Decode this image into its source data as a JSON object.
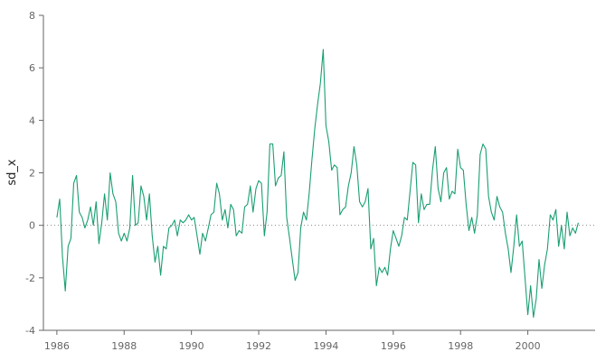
{
  "chart_data": {
    "type": "line",
    "title": "",
    "xlabel": "",
    "ylabel": "sd_x",
    "xlim": [
      1985.6,
      2002.0
    ],
    "ylim": [
      -4,
      8
    ],
    "x_ticks": [
      1986,
      1988,
      1990,
      1992,
      1994,
      1996,
      1998,
      2000
    ],
    "y_ticks": [
      -4,
      -2,
      0,
      2,
      4,
      6,
      8
    ],
    "reference_line": {
      "y": 0,
      "style": "dotted"
    },
    "grid": false,
    "legend": "none",
    "colors": {
      "series": "#1a9e74",
      "axis": "#666666",
      "reference": "#888888"
    },
    "series": [
      {
        "x": [
          1986.0,
          1986.083,
          1986.167,
          1986.25,
          1986.333,
          1986.417,
          1986.5,
          1986.583,
          1986.667,
          1986.75,
          1986.833,
          1986.917,
          1987.0,
          1987.083,
          1987.167,
          1987.25,
          1987.333,
          1987.417,
          1987.5,
          1987.583,
          1987.667,
          1987.75,
          1987.833,
          1987.917,
          1988.0,
          1988.083,
          1988.167,
          1988.25,
          1988.333,
          1988.417,
          1988.5,
          1988.583,
          1988.667,
          1988.75,
          1988.833,
          1988.917,
          1989.0,
          1989.083,
          1989.167,
          1989.25,
          1989.333,
          1989.417,
          1989.5,
          1989.583,
          1989.667,
          1989.75,
          1989.833,
          1989.917,
          1990.0,
          1990.083,
          1990.167,
          1990.25,
          1990.333,
          1990.417,
          1990.5,
          1990.583,
          1990.667,
          1990.75,
          1990.833,
          1990.917,
          1991.0,
          1991.083,
          1991.167,
          1991.25,
          1991.333,
          1991.417,
          1991.5,
          1991.583,
          1991.667,
          1991.75,
          1991.833,
          1991.917,
          1992.0,
          1992.083,
          1992.167,
          1992.25,
          1992.333,
          1992.417,
          1992.5,
          1992.583,
          1992.667,
          1992.75,
          1992.833,
          1992.917,
          1993.0,
          1993.083,
          1993.167,
          1993.25,
          1993.333,
          1993.417,
          1993.5,
          1993.583,
          1993.667,
          1993.75,
          1993.833,
          1993.917,
          1994.0,
          1994.083,
          1994.167,
          1994.25,
          1994.333,
          1994.417,
          1994.5,
          1994.583,
          1994.667,
          1994.75,
          1994.833,
          1994.917,
          1995.0,
          1995.083,
          1995.167,
          1995.25,
          1995.333,
          1995.417,
          1995.5,
          1995.583,
          1995.667,
          1995.75,
          1995.833,
          1995.917,
          1996.0,
          1996.083,
          1996.167,
          1996.25,
          1996.333,
          1996.417,
          1996.5,
          1996.583,
          1996.667,
          1996.75,
          1996.833,
          1996.917,
          1997.0,
          1997.083,
          1997.167,
          1997.25,
          1997.333,
          1997.417,
          1997.5,
          1997.583,
          1997.667,
          1997.75,
          1997.833,
          1997.917,
          1998.0,
          1998.083,
          1998.167,
          1998.25,
          1998.333,
          1998.417,
          1998.5,
          1998.583,
          1998.667,
          1998.75,
          1998.833,
          1998.917,
          1999.0,
          1999.083,
          1999.167,
          1999.25,
          1999.333,
          1999.417,
          1999.5,
          1999.583,
          1999.667,
          1999.75,
          1999.833,
          1999.917,
          2000.0,
          2000.083,
          2000.167,
          2000.25,
          2000.333,
          2000.417,
          2000.5,
          2000.583,
          2000.667,
          2000.75,
          2000.833,
          2000.917,
          2001.0,
          2001.083,
          2001.167,
          2001.25,
          2001.333,
          2001.417,
          2001.5
        ],
        "y": [
          0.3,
          1.0,
          -1.2,
          -2.5,
          -0.8,
          -0.5,
          1.6,
          1.9,
          0.5,
          0.3,
          -0.1,
          0.2,
          0.7,
          0.0,
          0.9,
          -0.7,
          0.1,
          1.2,
          0.2,
          2.0,
          1.2,
          0.9,
          -0.3,
          -0.6,
          -0.3,
          -0.6,
          -0.1,
          1.9,
          0.0,
          0.1,
          1.5,
          1.1,
          0.2,
          1.2,
          -0.4,
          -1.4,
          -0.8,
          -1.9,
          -0.8,
          -0.9,
          -0.1,
          0.0,
          0.2,
          -0.4,
          0.2,
          0.1,
          0.2,
          0.4,
          0.2,
          0.3,
          -0.4,
          -1.1,
          -0.3,
          -0.6,
          -0.1,
          0.4,
          0.5,
          1.6,
          1.2,
          0.2,
          0.6,
          -0.1,
          0.8,
          0.6,
          -0.4,
          -0.2,
          -0.3,
          0.7,
          0.8,
          1.5,
          0.5,
          1.4,
          1.7,
          1.6,
          -0.4,
          0.5,
          3.1,
          3.1,
          1.5,
          1.8,
          1.9,
          2.8,
          0.3,
          -0.5,
          -1.3,
          -2.1,
          -1.8,
          -0.1,
          0.5,
          0.2,
          1.2,
          2.5,
          3.7,
          4.6,
          5.4,
          6.7,
          3.8,
          3.2,
          2.1,
          2.3,
          2.2,
          0.4,
          0.6,
          0.7,
          1.5,
          2.0,
          3.0,
          2.3,
          0.9,
          0.7,
          0.9,
          1.4,
          -0.9,
          -0.5,
          -2.3,
          -1.6,
          -1.8,
          -1.6,
          -1.9,
          -0.9,
          -0.2,
          -0.5,
          -0.8,
          -0.4,
          0.3,
          0.2,
          1.3,
          2.4,
          2.3,
          0.1,
          1.2,
          0.6,
          0.8,
          0.8,
          2.1,
          3.0,
          1.4,
          0.9,
          2.0,
          2.2,
          1.0,
          1.3,
          1.2,
          2.9,
          2.2,
          2.1,
          0.8,
          -0.2,
          0.3,
          -0.3,
          0.4,
          2.7,
          3.1,
          2.9,
          1.1,
          0.5,
          0.2,
          1.1,
          0.7,
          0.5,
          -0.3,
          -0.9,
          -1.8,
          -0.8,
          0.4,
          -0.8,
          -0.6,
          -2.0,
          -3.4,
          -2.3,
          -3.5,
          -2.8,
          -1.3,
          -2.4,
          -1.5,
          -0.9,
          0.4,
          0.2,
          0.6,
          -0.8,
          0.0,
          -0.9,
          0.5,
          -0.4,
          -0.1,
          -0.3,
          0.1
        ]
      }
    ]
  }
}
